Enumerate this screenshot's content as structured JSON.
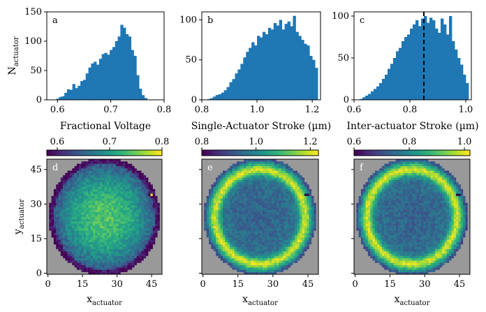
{
  "chart_data": [
    {
      "panel": "a",
      "type": "bar",
      "title": "",
      "xlabel": "Fractional Voltage",
      "ylabel_base": "N",
      "ylabel_sub": "actuator",
      "xlim": [
        0.58,
        0.8
      ],
      "ylim": [
        0,
        150
      ],
      "xticks": [
        "0.6",
        "0.7",
        "0.8"
      ],
      "xtick_values": [
        0.6,
        0.7,
        0.8
      ],
      "yticks": [
        "0",
        "50",
        "100",
        "150"
      ],
      "ytick_values": [
        0,
        50,
        100,
        150
      ],
      "bin_start": 0.598,
      "bin_width": 0.005,
      "values": [
        2,
        5,
        6,
        12,
        18,
        17,
        27,
        20,
        24,
        32,
        34,
        45,
        55,
        62,
        65,
        60,
        70,
        78,
        80,
        77,
        85,
        90,
        100,
        108,
        128,
        123,
        112,
        108,
        85,
        75,
        42,
        19,
        8,
        3
      ],
      "bar_color": "#1f77b4"
    },
    {
      "panel": "b",
      "type": "bar",
      "title": "",
      "xlabel": "Single-Actuator Stroke (µm)",
      "xlim": [
        0.8,
        1.23
      ],
      "ylim": [
        0,
        110
      ],
      "xticks": [
        "0.8",
        "1.0",
        "1.2"
      ],
      "xtick_values": [
        0.8,
        1.0,
        1.2
      ],
      "yticks": [
        "0",
        "50",
        "100"
      ],
      "ytick_values": [
        0,
        50,
        100
      ],
      "bin_start": 0.82,
      "bin_width": 0.01,
      "values": [
        1,
        2,
        4,
        6,
        7,
        9,
        12,
        16,
        22,
        26,
        33,
        38,
        45,
        53,
        60,
        65,
        72,
        68,
        80,
        78,
        85,
        82,
        90,
        88,
        96,
        93,
        100,
        88,
        95,
        98,
        92,
        105,
        85,
        80,
        75,
        70,
        68,
        55,
        50,
        40
      ],
      "bar_color": "#1f77b4"
    },
    {
      "panel": "c",
      "type": "bar",
      "title": "",
      "xlabel": "Inter-actuator Stroke (µm)",
      "xlim": [
        0.6,
        1.02
      ],
      "ylim": [
        0,
        105
      ],
      "xticks": [
        "0.6",
        "0.8",
        "1.0"
      ],
      "xtick_values": [
        0.6,
        0.8,
        1.0
      ],
      "yticks": [
        "0",
        "50",
        "100"
      ],
      "ytick_values": [
        0,
        50,
        100
      ],
      "bin_start": 0.62,
      "bin_width": 0.01,
      "values": [
        1,
        3,
        5,
        7,
        10,
        13,
        16,
        20,
        25,
        30,
        37,
        43,
        50,
        58,
        62,
        70,
        75,
        78,
        85,
        90,
        95,
        88,
        97,
        100,
        92,
        98,
        95,
        85,
        80,
        97,
        90,
        78,
        100,
        70,
        60,
        50,
        42,
        30,
        20
      ],
      "vline_x": 0.85,
      "bar_color": "#1f77b4"
    },
    {
      "panel": "d",
      "type": "heatmap",
      "xlabel_base": "x",
      "xlabel_sub": "actuator",
      "ylabel_base": "y",
      "ylabel_sub": "actuator",
      "xticks": [
        "0",
        "15",
        "30",
        "45"
      ],
      "xtick_values": [
        0,
        15,
        30,
        45
      ],
      "yticks": [
        "0",
        "15",
        "30",
        "45"
      ],
      "ytick_values": [
        0,
        15,
        30,
        45
      ],
      "colorbar_ticks": [
        "0.6",
        "0.7",
        "0.8"
      ],
      "colorbar_tick_values": [
        0.6,
        0.7,
        0.8
      ],
      "colorbar_range": [
        0.58,
        0.8
      ],
      "colormap": "viridis",
      "pattern": "center-high"
    },
    {
      "panel": "e",
      "type": "heatmap",
      "xlabel_base": "x",
      "xlabel_sub": "actuator",
      "xticks": [
        "0",
        "15",
        "30",
        "45"
      ],
      "xtick_values": [
        0,
        15,
        30,
        45
      ],
      "colorbar_ticks": [
        "0.8",
        "1.0",
        "1.2"
      ],
      "colorbar_tick_values": [
        0.8,
        1.0,
        1.2
      ],
      "colorbar_range": [
        0.8,
        1.23
      ],
      "colormap": "viridis",
      "pattern": "ring-high"
    },
    {
      "panel": "f",
      "type": "heatmap",
      "xlabel_base": "x",
      "xlabel_sub": "actuator",
      "xticks": [
        "0",
        "15",
        "30",
        "45"
      ],
      "xtick_values": [
        0,
        15,
        30,
        45
      ],
      "colorbar_ticks": [
        "0.6",
        "0.8",
        "1.0"
      ],
      "colorbar_tick_values": [
        0.6,
        0.8,
        1.0
      ],
      "colorbar_range": [
        0.6,
        1.02
      ],
      "colormap": "viridis",
      "pattern": "ring-high"
    }
  ],
  "colors": {
    "bar": "#1f77b4",
    "outside_aperture": "#999999",
    "dead_actuator": "#2b0a3d",
    "dashed_line": "#000000"
  }
}
